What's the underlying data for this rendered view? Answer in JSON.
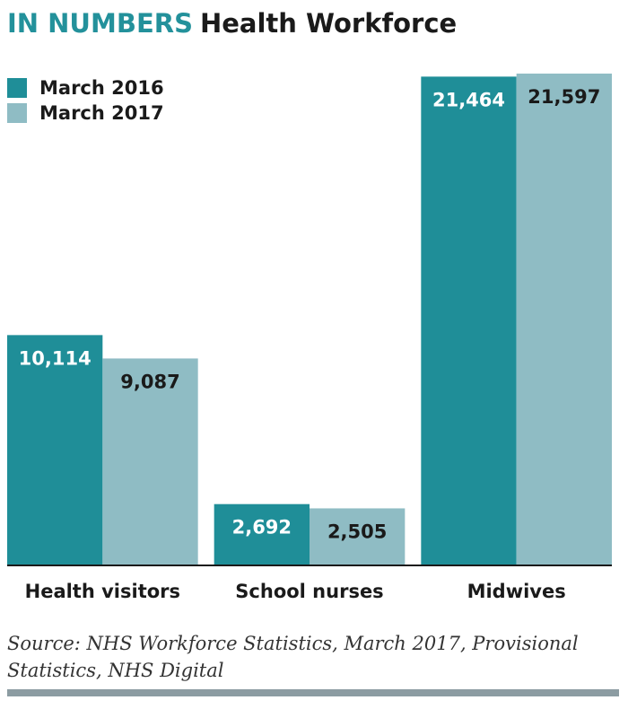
{
  "chart_data": {
    "type": "bar",
    "title_highlight": "IN NUMBERS",
    "title": "Health Workforce",
    "title_highlight_color": "#23919b",
    "categories": [
      "Health visitors",
      "School nurses",
      "Midwives"
    ],
    "series": [
      {
        "name": "March 2016",
        "color": "#1f8e98",
        "label_color": "#ffffff",
        "values": [
          10114,
          2692,
          21464
        ],
        "value_labels": [
          "10,114",
          "2,692",
          "21,464"
        ]
      },
      {
        "name": "March 2017",
        "color": "#8fbcc4",
        "label_color": "#1a1a1a",
        "values": [
          9087,
          2505,
          21597
        ],
        "value_labels": [
          "9,087",
          "2,505",
          "21,597"
        ]
      }
    ],
    "legend": "top-left",
    "source": "Source: NHS Workforce Statistics, March 2017, Provisional Statistics, NHS Digital"
  }
}
